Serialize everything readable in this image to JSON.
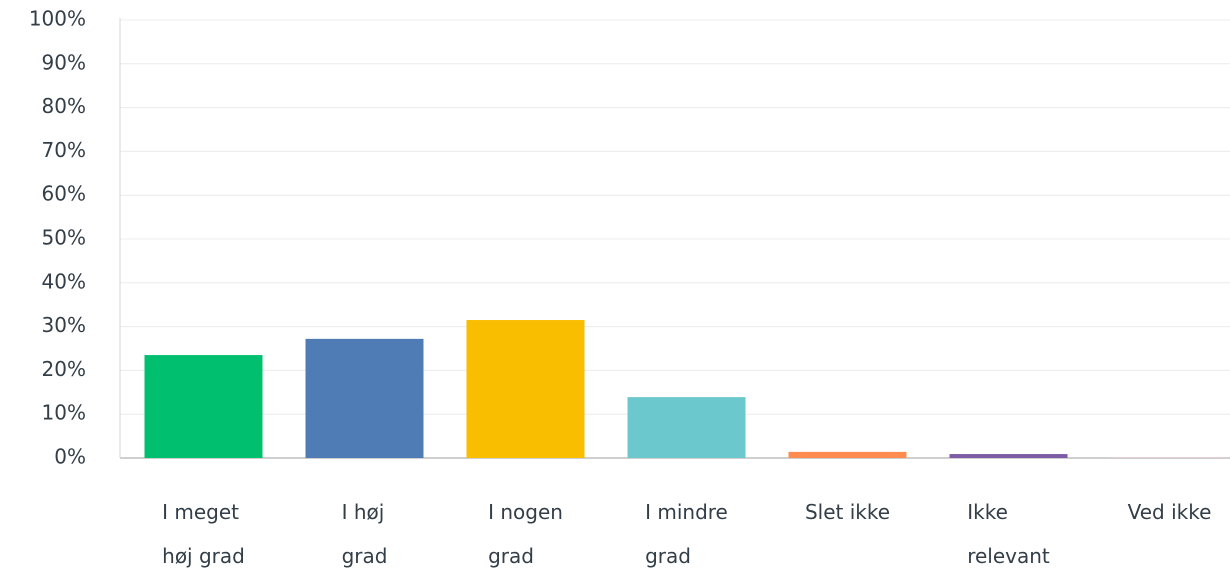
{
  "chart_data": {
    "type": "bar",
    "categories": [
      "I meget\nhøj grad",
      "I høj\ngrad",
      "I nogen\ngrad",
      "I mindre\ngrad",
      "Slet ikke",
      "Ikke\nrelevant",
      "Ved ikke"
    ],
    "values": [
      23.5,
      27.2,
      31.5,
      13.9,
      1.4,
      0.9,
      0.2
    ],
    "colors": [
      "#00bf6f",
      "#507cb6",
      "#f9be00",
      "#6bc8cd",
      "#ff8b4f",
      "#7d5ba6",
      "#e7cfd3"
    ],
    "ylim": [
      0,
      100
    ],
    "yticks": [
      {
        "value": 0,
        "label": "0%"
      },
      {
        "value": 10,
        "label": "10%"
      },
      {
        "value": 20,
        "label": "20%"
      },
      {
        "value": 30,
        "label": "30%"
      },
      {
        "value": 40,
        "label": "40%"
      },
      {
        "value": 50,
        "label": "50%"
      },
      {
        "value": 60,
        "label": "60%"
      },
      {
        "value": 70,
        "label": "70%"
      },
      {
        "value": 80,
        "label": "80%"
      },
      {
        "value": 90,
        "label": "90%"
      },
      {
        "value": 100,
        "label": "100%"
      }
    ],
    "grid": true
  }
}
